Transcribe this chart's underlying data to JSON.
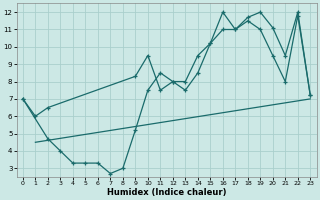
{
  "xlabel": "Humidex (Indice chaleur)",
  "xlim": [
    -0.5,
    23.5
  ],
  "ylim": [
    2.5,
    12.5
  ],
  "yticks": [
    3,
    4,
    5,
    6,
    7,
    8,
    9,
    10,
    11,
    12
  ],
  "xticks": [
    0,
    1,
    2,
    3,
    4,
    5,
    6,
    7,
    8,
    9,
    10,
    11,
    12,
    13,
    14,
    15,
    16,
    17,
    18,
    19,
    20,
    21,
    22,
    23
  ],
  "bg_color": "#cce8e5",
  "line_color": "#1a6b6b",
  "grid_color": "#aacfcc",
  "series1_x": [
    0,
    1,
    2,
    9,
    10,
    11,
    12,
    13,
    14,
    15,
    16,
    17,
    18,
    19,
    20,
    21,
    22,
    23
  ],
  "series1_y": [
    7.0,
    6.0,
    6.5,
    8.3,
    9.5,
    7.5,
    8.0,
    8.0,
    9.5,
    10.2,
    12.0,
    11.0,
    11.7,
    12.0,
    11.1,
    9.5,
    12.0,
    7.2
  ],
  "series2_x": [
    0,
    2,
    3,
    4,
    5,
    6,
    7,
    8,
    9,
    10,
    11,
    12,
    13,
    14,
    15,
    16,
    17,
    18,
    19,
    20,
    21,
    22,
    23
  ],
  "series2_y": [
    7.0,
    4.7,
    4.0,
    3.3,
    3.3,
    3.3,
    2.7,
    3.0,
    5.2,
    7.5,
    8.5,
    8.0,
    7.5,
    8.5,
    10.2,
    11.0,
    11.0,
    11.5,
    11.0,
    9.5,
    8.0,
    11.8,
    7.2
  ],
  "series3_x": [
    1,
    23
  ],
  "series3_y": [
    4.5,
    7.0
  ]
}
